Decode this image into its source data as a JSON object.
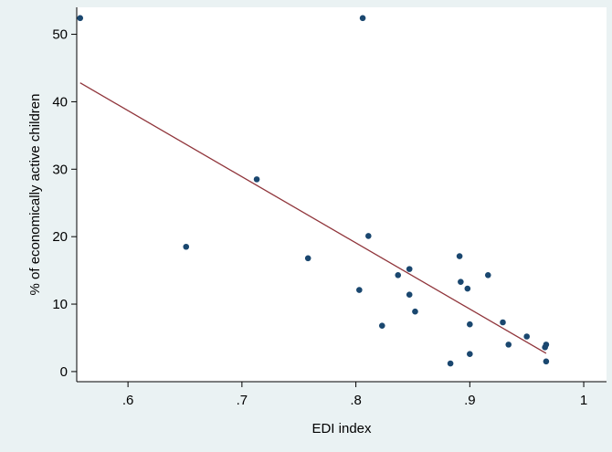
{
  "chart_data": {
    "type": "scatter",
    "xlabel": "EDI index",
    "ylabel": "% of economically active children",
    "xlim": [
      0.555,
      1.02
    ],
    "ylim": [
      -1.5,
      54
    ],
    "x_ticks": [
      {
        "value": 0.6,
        "label": ".6"
      },
      {
        "value": 0.7,
        "label": ".7"
      },
      {
        "value": 0.8,
        "label": ".8"
      },
      {
        "value": 0.9,
        "label": ".9"
      },
      {
        "value": 1.0,
        "label": "1"
      }
    ],
    "y_ticks": [
      {
        "value": 0,
        "label": "0"
      },
      {
        "value": 10,
        "label": "10"
      },
      {
        "value": 20,
        "label": "20"
      },
      {
        "value": 30,
        "label": "30"
      },
      {
        "value": 40,
        "label": "40"
      },
      {
        "value": 50,
        "label": "50"
      }
    ],
    "grid": false,
    "points": [
      {
        "x": 0.558,
        "y": 52.4
      },
      {
        "x": 0.806,
        "y": 52.4
      },
      {
        "x": 0.713,
        "y": 28.5
      },
      {
        "x": 0.651,
        "y": 18.5
      },
      {
        "x": 0.758,
        "y": 16.8
      },
      {
        "x": 0.811,
        "y": 20.1
      },
      {
        "x": 0.803,
        "y": 12.1
      },
      {
        "x": 0.823,
        "y": 6.8
      },
      {
        "x": 0.837,
        "y": 14.3
      },
      {
        "x": 0.847,
        "y": 15.2
      },
      {
        "x": 0.847,
        "y": 11.4
      },
      {
        "x": 0.852,
        "y": 8.9
      },
      {
        "x": 0.883,
        "y": 1.2
      },
      {
        "x": 0.891,
        "y": 17.1
      },
      {
        "x": 0.892,
        "y": 13.3
      },
      {
        "x": 0.898,
        "y": 12.3
      },
      {
        "x": 0.9,
        "y": 7.0
      },
      {
        "x": 0.9,
        "y": 2.6
      },
      {
        "x": 0.916,
        "y": 14.3
      },
      {
        "x": 0.929,
        "y": 7.3
      },
      {
        "x": 0.934,
        "y": 4.0
      },
      {
        "x": 0.95,
        "y": 5.2
      },
      {
        "x": 0.966,
        "y": 3.6
      },
      {
        "x": 0.967,
        "y": 4.0
      },
      {
        "x": 0.967,
        "y": 1.5
      }
    ],
    "fit_line": {
      "x1": 0.558,
      "y1": 42.8,
      "x2": 0.967,
      "y2": 2.7
    },
    "colors": {
      "background": "#eaf2f3",
      "plot_area": "#ffffff",
      "marker": "#1a476f",
      "fit_line": "#90353b"
    }
  }
}
